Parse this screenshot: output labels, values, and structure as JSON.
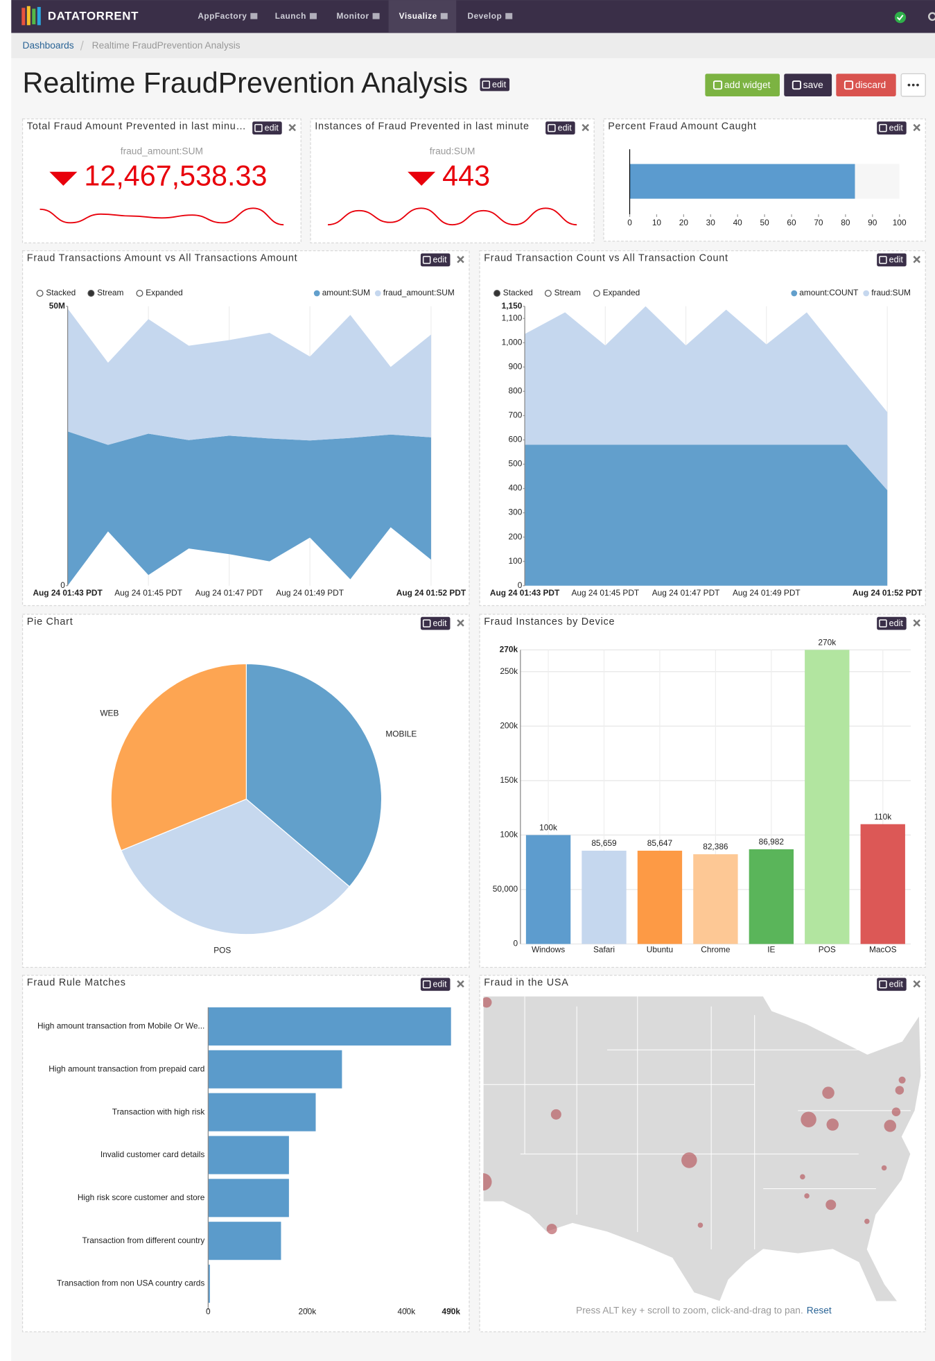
{
  "nav": {
    "brand": "DATATORRENT",
    "items": [
      "AppFactory",
      "Launch",
      "Monitor",
      "Visualize",
      "Develop"
    ],
    "active": 3
  },
  "breadcrumb": [
    "Dashboards",
    "Realtime FraudPrevention Analysis"
  ],
  "header": {
    "title": "Realtime FraudPrevention Analysis",
    "edit": "edit",
    "buttons": [
      "add widget",
      "save",
      "discard"
    ]
  },
  "widgets": [
    {
      "title": "Total Fraud Amount Prevented in last minu…",
      "edit": "edit",
      "chart_data": {
        "type": "kpi",
        "label": "fraud_amount:SUM",
        "value": 12467538.33,
        "value_label": "12,467,538.33",
        "color": "#e8000b",
        "spark": [
          12800000,
          11400000,
          12300000,
          12100000,
          11900000,
          12200000,
          11400000,
          12900000,
          11200000
        ]
      }
    },
    {
      "title": "Instances of Fraud Prevented in last minute",
      "edit": "edit",
      "chart_data": {
        "type": "kpi",
        "label": "fraud:SUM",
        "value": 443,
        "color": "#e8000b",
        "spark": [
          400,
          460,
          410,
          470,
          400,
          460,
          400,
          470,
          400
        ]
      }
    },
    {
      "title": "Percent Fraud Amount Caught",
      "edit": "edit",
      "chart_data": {
        "type": "progress",
        "value": 83.5,
        "color": "#5b9bcf",
        "xlim": [
          0,
          100
        ],
        "xticks": [
          0,
          10,
          20,
          30,
          40,
          50,
          60,
          70,
          80,
          90,
          100
        ]
      }
    },
    {
      "title": "Fraud Transactions Amount vs All Transactions Amount",
      "edit": "edit",
      "chart_data": {
        "type": "area",
        "controls": [
          "Stacked",
          "Stream",
          "Expanded"
        ],
        "selected": 1,
        "x": [
          "Aug 24 01:43 PDT",
          null,
          "Aug 24 01:45 PDT",
          null,
          "Aug 24 01:47 PDT",
          null,
          "Aug 24 01:49 PDT",
          null,
          null,
          "Aug 24 01:52 PDT"
        ],
        "series": [
          {
            "name": "amount:SUM",
            "color": "#629fcc",
            "values": [
              27600000,
              15500000,
              25300000,
              19400000,
              21200000,
              22000000,
              17400000,
              25300000,
              16600000,
              21900000
            ]
          },
          {
            "name": "fraud_amount:SUM",
            "color": "#c5d7ee",
            "values": [
              22000000,
              14700000,
              20500000,
              16900000,
              17100000,
              18900000,
              15000000,
              22000000,
              12100000,
              18400000
            ]
          }
        ],
        "ylim": [
          0,
          50000000
        ],
        "yticks": [
          0,
          {
            "value": 50000000,
            "label": "50M"
          }
        ]
      }
    },
    {
      "title": "Fraud Transaction Count vs All Transaction Count",
      "edit": "edit",
      "chart_data": {
        "type": "area",
        "controls": [
          "Stacked",
          "Stream",
          "Expanded"
        ],
        "selected": 0,
        "x": [
          "Aug 24 01:43 PDT",
          null,
          "Aug 24 01:45 PDT",
          null,
          "Aug 24 01:47 PDT",
          null,
          "Aug 24 01:49 PDT",
          null,
          null,
          "Aug 24 01:52 PDT"
        ],
        "series": [
          {
            "name": "amount:COUNT",
            "color": "#629fcc",
            "values": [
              580,
              580,
              580,
              580,
              580,
              580,
              580,
              580,
              580,
              393
            ]
          },
          {
            "name": "fraud:SUM",
            "color": "#c5d7ee",
            "values": [
              456,
              545,
              409,
              570,
              409,
              556,
              413,
              545,
              338,
              321
            ]
          }
        ],
        "ylim": [
          0,
          1150
        ],
        "yticks": [
          0,
          100,
          200,
          300,
          400,
          500,
          600,
          700,
          800,
          900,
          {
            "value": 1000,
            "label": "1,000"
          },
          {
            "value": 1100,
            "label": "1,100"
          },
          {
            "value": 1150,
            "label": "1,150"
          }
        ]
      }
    },
    {
      "title": "Pie Chart",
      "edit": "edit",
      "chart_data": {
        "type": "pie",
        "categories": [
          "MOBILE",
          "POS",
          "WEB"
        ],
        "values": [
          36.2,
          32.6,
          31.2
        ],
        "colors": [
          "#62a0cb",
          "#c6d8ee",
          "#fda552"
        ]
      }
    },
    {
      "title": "Fraud Instances by Device",
      "edit": "edit",
      "chart_data": {
        "type": "bar",
        "categories": [
          "Windows",
          "Safari",
          "Ubuntu",
          "Chrome",
          "IE",
          "POS",
          "MacOS"
        ],
        "values": [
          100000,
          85659,
          85647,
          82386,
          86982,
          270000,
          110000
        ],
        "value_labels": [
          "100k",
          "85,659",
          "85,647",
          "82,386",
          "86,982",
          "270k",
          "110k"
        ],
        "colors": [
          "#5d9cce",
          "#c5d7ee",
          "#fd9a45",
          "#fdc895",
          "#5ab55a",
          "#b2e5a0",
          "#dc5856"
        ],
        "ylim": [
          0,
          270000
        ],
        "yticks": [
          0,
          {
            "value": 50000,
            "label": "50,000"
          },
          {
            "value": 100000,
            "label": "100k"
          },
          {
            "value": 150000,
            "label": "150k"
          },
          {
            "value": 200000,
            "label": "200k"
          },
          {
            "value": 250000,
            "label": "250k"
          },
          {
            "value": 270000,
            "label": "270k"
          }
        ],
        "grid": true
      }
    },
    {
      "title": "Fraud Rule Matches",
      "edit": "edit",
      "chart_data": {
        "type": "hbar",
        "color": "#5b9bcb",
        "categories": [
          "High amount transaction from Mobile Or We...",
          "High amount transaction from prepaid card",
          "Transaction with high risk",
          "Invalid customer card details",
          "High risk score customer and store",
          "Transaction from different country",
          "Transaction from non USA country cards"
        ],
        "values": [
          490000,
          270000,
          217000,
          163000,
          163000,
          147000,
          3500
        ],
        "xlim": [
          0,
          490000
        ],
        "xticks": [
          0,
          {
            "value": 200000,
            "label": "200k"
          },
          {
            "value": 400000,
            "label": "400k"
          },
          {
            "value": 490000,
            "label": "490k"
          }
        ]
      }
    },
    {
      "title": "Fraud in the USA",
      "edit": "edit",
      "chart_data": {
        "type": "bubble-map",
        "color": "#b5545a",
        "hint": "Press ALT key + scroll to zoom, click-and-drag to pan.",
        "reset": "Reset",
        "points": [
          {
            "lon": -120.6,
            "lat": 48.5,
            "value": 360
          },
          {
            "lon": -112.5,
            "lat": 39.7,
            "value": 360
          },
          {
            "lon": -121.0,
            "lat": 34.4,
            "value": 1000
          },
          {
            "lon": -113.0,
            "lat": 30.7,
            "value": 360
          },
          {
            "lon": -97.0,
            "lat": 36.1,
            "value": 810
          },
          {
            "lon": -95.7,
            "lat": 31.0,
            "value": 90
          },
          {
            "lon": -83.1,
            "lat": 39.3,
            "value": 810
          },
          {
            "lon": -80.3,
            "lat": 38.9,
            "value": 490
          },
          {
            "lon": -80.8,
            "lat": 41.4,
            "value": 490
          },
          {
            "lon": -73.6,
            "lat": 38.8,
            "value": 490
          },
          {
            "lon": -72.9,
            "lat": 39.9,
            "value": 250
          },
          {
            "lon": -72.5,
            "lat": 41.6,
            "value": 250
          },
          {
            "lon": -83.8,
            "lat": 34.8,
            "value": 90
          },
          {
            "lon": -83.3,
            "lat": 33.3,
            "value": 90
          },
          {
            "lon": -80.5,
            "lat": 32.6,
            "value": 360
          },
          {
            "lon": -76.3,
            "lat": 31.3,
            "value": 90
          },
          {
            "lon": -74.3,
            "lat": 35.5,
            "value": 90
          },
          {
            "lon": -72.2,
            "lat": 42.4,
            "value": 160
          }
        ]
      }
    }
  ]
}
